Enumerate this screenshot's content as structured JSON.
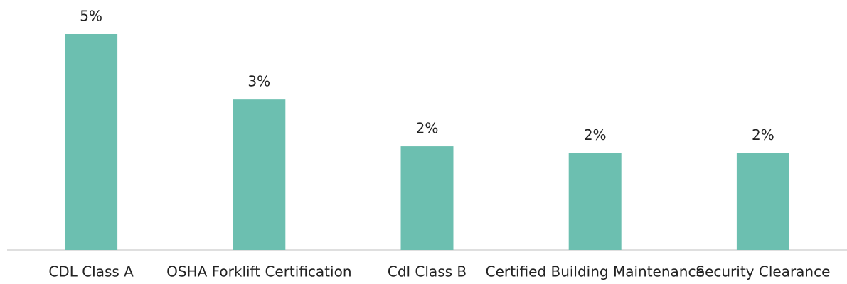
{
  "chart_data": {
    "type": "bar",
    "categories": [
      "CDL Class A",
      "OSHA Forklift Certification",
      "Cdl Class B",
      "Certified Building Maintenance",
      "Security Clearance"
    ],
    "values": [
      4.75,
      3.31,
      2.28,
      2.13,
      2.13
    ],
    "value_labels": [
      "5%",
      "3%",
      "2%",
      "2%",
      "2%"
    ],
    "color": "#6cbfb0"
  }
}
